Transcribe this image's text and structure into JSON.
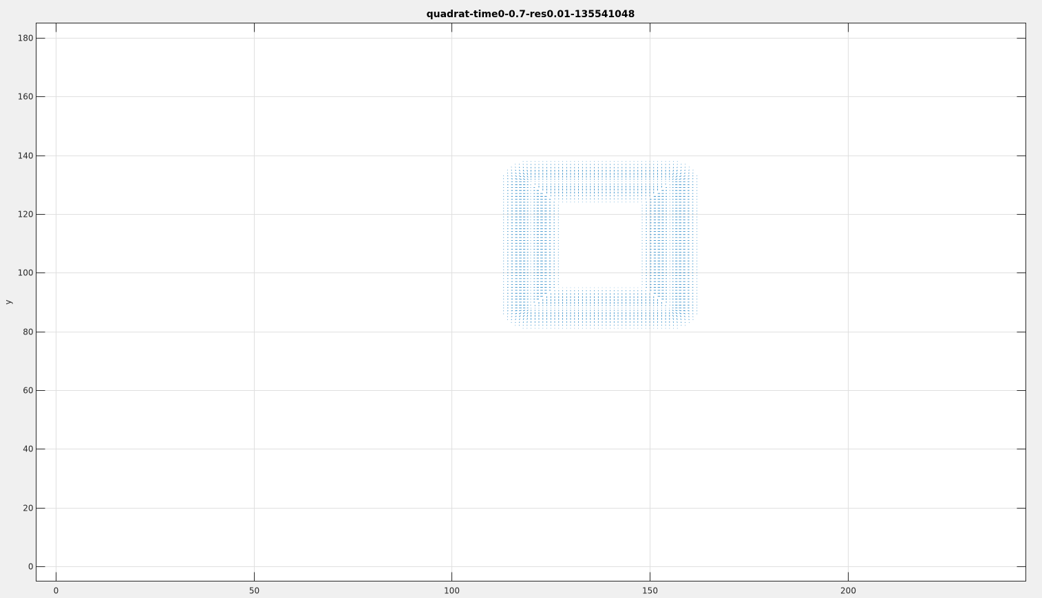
{
  "chart_data": {
    "type": "quiver",
    "title": "quadrat-time0-0.7-res0.01-135541048",
    "xlabel": "",
    "ylabel": "y",
    "xlim": [
      -5,
      245
    ],
    "ylim": [
      -5,
      185
    ],
    "xticks": [
      0,
      50,
      100,
      150,
      200
    ],
    "yticks": [
      0,
      20,
      40,
      60,
      80,
      100,
      120,
      140,
      160,
      180
    ],
    "grid": true,
    "box": true,
    "series_color": "#0072bd",
    "field": {
      "x_range": [
        98,
        163
      ],
      "y_range": [
        80,
        138
      ],
      "spacing": 1.0,
      "square_x": [
        120,
        155
      ],
      "square_y": [
        88,
        131
      ]
    }
  },
  "colors": {
    "figure_background": "#f0f0f0",
    "axes_background": "#ffffff",
    "grid": "#dfdfdf",
    "axis_line": "#262626",
    "arrows": "#0072bd"
  }
}
